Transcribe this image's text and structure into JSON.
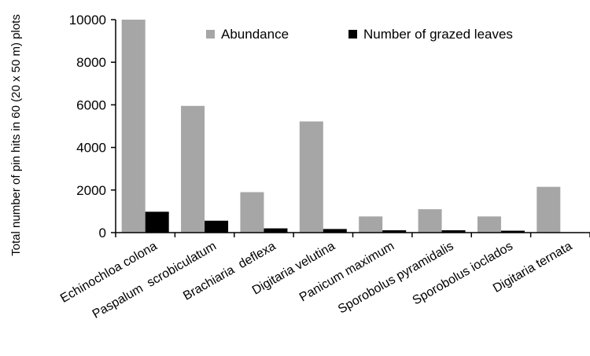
{
  "chart_data": {
    "type": "bar",
    "title": "",
    "xlabel": "",
    "ylabel": "Total number of pin hits in 60 (20 x 50 m) plots",
    "ylim": [
      0,
      10000
    ],
    "yticks": [
      0,
      2000,
      4000,
      6000,
      8000,
      10000
    ],
    "grid": false,
    "legend_position": "top-right",
    "categories": [
      "Echinochloa colona",
      "Paspalum  scrobiculatum",
      "Brachiaria  deflexa",
      "Digitaria velutina",
      "Panicum maximum",
      "Sporobolus pyramidalis",
      "Sporobolus ioclados",
      "Digitaria ternata"
    ],
    "series": [
      {
        "name": "Abundance",
        "color": "#a6a6a6",
        "values": [
          10000,
          5950,
          1900,
          5220,
          760,
          1100,
          760,
          2150
        ]
      },
      {
        "name": "Number of grazed leaves",
        "color": "#000000",
        "values": [
          980,
          560,
          200,
          170,
          110,
          110,
          90,
          20
        ]
      }
    ]
  }
}
